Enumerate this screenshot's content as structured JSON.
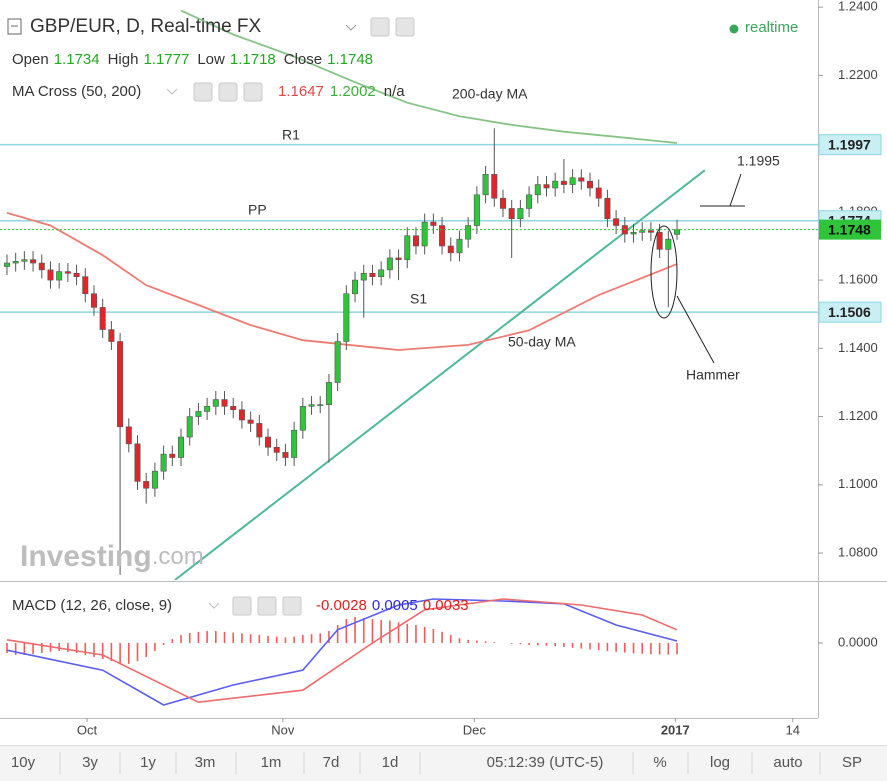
{
  "chart_data": [
    {
      "type": "candlestick",
      "title": "GBP/EUR, D, Real-time FX",
      "status": "realtime",
      "ohlc_labels": [
        "Open",
        "High",
        "Low",
        "Close"
      ],
      "indicator_label": "MA Cross (50, 200)",
      "indicator_extra": "n/a",
      "up_color": "#2fc43a",
      "down_color": "#e0262b",
      "open": [
        1.164,
        1.165,
        1.1655,
        1.166,
        1.165,
        1.163,
        1.16,
        1.1625,
        1.162,
        1.161,
        1.156,
        1.152,
        1.1455,
        1.142,
        1.117,
        1.112,
        1.101,
        1.099,
        1.104,
        1.109,
        1.108,
        1.114,
        1.12,
        1.1215,
        1.123,
        1.125,
        1.123,
        1.122,
        1.119,
        1.118,
        1.114,
        1.111,
        1.1095,
        1.108,
        1.116,
        1.123,
        1.1235,
        1.1235,
        1.13,
        1.142,
        1.156,
        1.16,
        1.162,
        1.161,
        1.163,
        1.1665,
        1.166,
        1.173,
        1.17,
        1.177,
        1.176,
        1.17,
        1.168,
        1.172,
        1.176,
        1.185,
        1.191,
        1.184,
        1.181,
        1.178,
        1.181,
        1.185,
        1.188,
        1.187,
        1.189,
        1.188,
        1.19,
        1.189,
        1.187,
        1.184,
        1.178,
        1.176,
        1.1735,
        1.174,
        1.1745,
        1.174,
        1.169,
        1.1734
      ],
      "high": [
        1.1675,
        1.168,
        1.1685,
        1.1685,
        1.1675,
        1.1655,
        1.165,
        1.165,
        1.1645,
        1.1635,
        1.1585,
        1.1545,
        1.148,
        1.1445,
        1.1195,
        1.1145,
        1.1035,
        1.1065,
        1.1115,
        1.1115,
        1.1165,
        1.1225,
        1.124,
        1.1255,
        1.1275,
        1.1275,
        1.1255,
        1.1245,
        1.1215,
        1.1205,
        1.1165,
        1.1135,
        1.112,
        1.1185,
        1.1255,
        1.126,
        1.126,
        1.1325,
        1.1445,
        1.1585,
        1.1625,
        1.1645,
        1.1645,
        1.1655,
        1.169,
        1.169,
        1.1755,
        1.1755,
        1.1795,
        1.1795,
        1.1785,
        1.1725,
        1.1745,
        1.1785,
        1.1875,
        1.1935,
        1.2045,
        1.1865,
        1.1835,
        1.1835,
        1.1875,
        1.1905,
        1.1905,
        1.1915,
        1.1955,
        1.1925,
        1.1925,
        1.1915,
        1.1895,
        1.1865,
        1.1805,
        1.1785,
        1.1765,
        1.177,
        1.177,
        1.1765,
        1.1745,
        1.1777
      ],
      "low": [
        1.1615,
        1.1625,
        1.163,
        1.1625,
        1.1605,
        1.1575,
        1.1575,
        1.1595,
        1.1585,
        1.1535,
        1.1495,
        1.143,
        1.1395,
        1.0736,
        1.1095,
        1.0985,
        1.0945,
        1.0965,
        1.1015,
        1.1055,
        1.1055,
        1.1115,
        1.1175,
        1.119,
        1.1205,
        1.1205,
        1.1195,
        1.1165,
        1.1155,
        1.1115,
        1.1085,
        1.107,
        1.1055,
        1.1055,
        1.1135,
        1.1205,
        1.121,
        1.1065,
        1.1275,
        1.1395,
        1.1535,
        1.149,
        1.1585,
        1.1585,
        1.1605,
        1.16,
        1.1635,
        1.1675,
        1.1675,
        1.1735,
        1.1675,
        1.1655,
        1.1655,
        1.1695,
        1.1735,
        1.1825,
        1.1815,
        1.1785,
        1.1665,
        1.1755,
        1.1785,
        1.1825,
        1.1845,
        1.1845,
        1.1855,
        1.1855,
        1.1865,
        1.1845,
        1.1815,
        1.1755,
        1.1735,
        1.171,
        1.171,
        1.1715,
        1.1715,
        1.1665,
        1.152,
        1.1718
      ],
      "close": [
        1.165,
        1.1655,
        1.166,
        1.165,
        1.163,
        1.16,
        1.1625,
        1.162,
        1.161,
        1.156,
        1.152,
        1.1455,
        1.142,
        1.117,
        1.112,
        1.101,
        1.099,
        1.104,
        1.109,
        1.108,
        1.114,
        1.12,
        1.1215,
        1.123,
        1.125,
        1.123,
        1.122,
        1.119,
        1.118,
        1.114,
        1.111,
        1.1095,
        1.108,
        1.116,
        1.123,
        1.1235,
        1.1235,
        1.13,
        1.142,
        1.156,
        1.16,
        1.162,
        1.161,
        1.163,
        1.1665,
        1.166,
        1.173,
        1.17,
        1.177,
        1.176,
        1.17,
        1.168,
        1.172,
        1.176,
        1.185,
        1.191,
        1.184,
        1.181,
        1.178,
        1.181,
        1.185,
        1.188,
        1.187,
        1.189,
        1.188,
        1.19,
        1.189,
        1.187,
        1.184,
        1.178,
        1.176,
        1.1735,
        1.174,
        1.1745,
        1.174,
        1.169,
        1.172,
        1.1748
      ],
      "moving_averages": [
        {
          "color": "#f07b72",
          "x": [
            0,
            5,
            11,
            16,
            22,
            28,
            34,
            45,
            53,
            60,
            68,
            77
          ],
          "values": [
            1.1797,
            1.176,
            1.1673,
            1.1585,
            1.1527,
            1.1468,
            1.1424,
            1.1395,
            1.141,
            1.1453,
            1.1556,
            1.1647
          ]
        },
        {
          "color": "#86c486",
          "x": [
            20,
            26,
            33,
            40,
            46,
            52,
            58,
            64,
            70,
            77
          ],
          "values": [
            1.239,
            1.232,
            1.2255,
            1.218,
            1.212,
            1.208,
            1.2055,
            1.2035,
            1.202,
            1.2002
          ]
        }
      ],
      "levels": [
        {
          "name": "R1",
          "value": 1.1997
        },
        {
          "name": "PP",
          "value": 1.1774
        },
        {
          "name": "S1",
          "value": 1.1506
        }
      ],
      "level_color": "#8fd6e0",
      "trendline": {
        "color": "#4fb89a",
        "x": [
          19.3,
          80.2
        ],
        "values": [
          1.0721,
          1.1922
        ]
      },
      "annotations": [
        "200-day MA",
        "1.1995",
        "50-day MA",
        "Hammer"
      ],
      "xlim": [
        -0.8,
        93.2
      ],
      "ylim": [
        1.0721,
        1.2421
      ],
      "yticks": [
        {
          "value": 1.24,
          "label": "1.2400"
        },
        {
          "value": 1.22,
          "label": "1.2200"
        },
        {
          "value": 1.2,
          "label": "1.2000"
        },
        {
          "value": 1.18,
          "label": "1.1800"
        },
        {
          "value": 1.16,
          "label": "1.1600"
        },
        {
          "value": 1.14,
          "label": "1.1400"
        },
        {
          "value": 1.12,
          "label": "1.1200"
        },
        {
          "value": 1.1,
          "label": "1.1000"
        },
        {
          "value": 1.08,
          "label": "1.0800"
        }
      ]
    },
    {
      "type": "macd",
      "title": "MACD (12, 26, close, 9)",
      "series": [
        {
          "kind": "histogram",
          "color": "#ef5b5b",
          "values": [
            -0.0025,
            -0.003,
            -0.003,
            -0.0028,
            -0.0025,
            -0.0022,
            -0.002,
            -0.0022,
            -0.0025,
            -0.003,
            -0.0035,
            -0.004,
            -0.0045,
            -0.005,
            -0.0052,
            -0.0045,
            -0.0035,
            -0.002,
            -0.0005,
            0.001,
            0.002,
            0.0025,
            0.0028,
            0.003,
            0.003,
            0.0028,
            0.0026,
            0.0024,
            0.0022,
            0.002,
            0.0018,
            0.0016,
            0.0014,
            0.0016,
            0.002,
            0.0022,
            0.0024,
            0.003,
            0.0045,
            0.006,
            0.0065,
            0.0062,
            0.006,
            0.0058,
            0.0056,
            0.0052,
            0.0048,
            0.0045,
            0.004,
            0.0035,
            0.0028,
            0.002,
            0.0012,
            0.0008,
            0.0006,
            0.0004,
            0.0002,
            0.0,
            -0.0002,
            -0.0003,
            -0.0005,
            -0.0006,
            -0.0007,
            -0.0008,
            -0.001,
            -0.0012,
            -0.0014,
            -0.0016,
            -0.0018,
            -0.002,
            -0.0022,
            -0.0024,
            -0.0026,
            -0.0027,
            -0.0028,
            -0.0029,
            -0.0029,
            -0.0028
          ]
        },
        {
          "kind": "line",
          "color": "#5a5ef0",
          "x": [
            0,
            11,
            18,
            26,
            34,
            38,
            45,
            49,
            57,
            64,
            70,
            77
          ],
          "values": [
            -0.0018,
            -0.0068,
            -0.0155,
            -0.0105,
            -0.0068,
            0.0033,
            0.0095,
            0.011,
            0.0105,
            0.0098,
            0.0045,
            0.0005
          ]
        },
        {
          "kind": "line",
          "color": "#f06a6a",
          "x": [
            0,
            11,
            22,
            34,
            42,
            48,
            57,
            66,
            73,
            77
          ],
          "values": [
            0.0008,
            -0.003,
            -0.0148,
            -0.0118,
            0.0,
            0.0083,
            0.011,
            0.0095,
            0.007,
            0.0033
          ]
        }
      ],
      "xlim": [
        -0.8,
        93.2
      ],
      "ylim": [
        -0.01875,
        0.015
      ],
      "yticks": [
        {
          "value": 0,
          "label": "0.0000"
        }
      ],
      "xticks": [
        {
          "value": 9.2,
          "label": "Oct"
        },
        {
          "value": 31.7,
          "label": "Nov"
        },
        {
          "value": 53.7,
          "label": "Dec"
        },
        {
          "value": 76.8,
          "label": "2017",
          "bold": true
        },
        {
          "value": 90.3,
          "label": "14"
        }
      ]
    }
  ],
  "watermark": {
    "brand": "Investing",
    "suffix": ".com"
  },
  "toolbar": {
    "ranges": [
      "10y",
      "3y",
      "1y",
      "3m",
      "1m",
      "7d",
      "1d"
    ],
    "time": "05:12:39 (UTC-5)",
    "buttons": [
      "%",
      "log",
      "auto",
      "SP"
    ]
  }
}
